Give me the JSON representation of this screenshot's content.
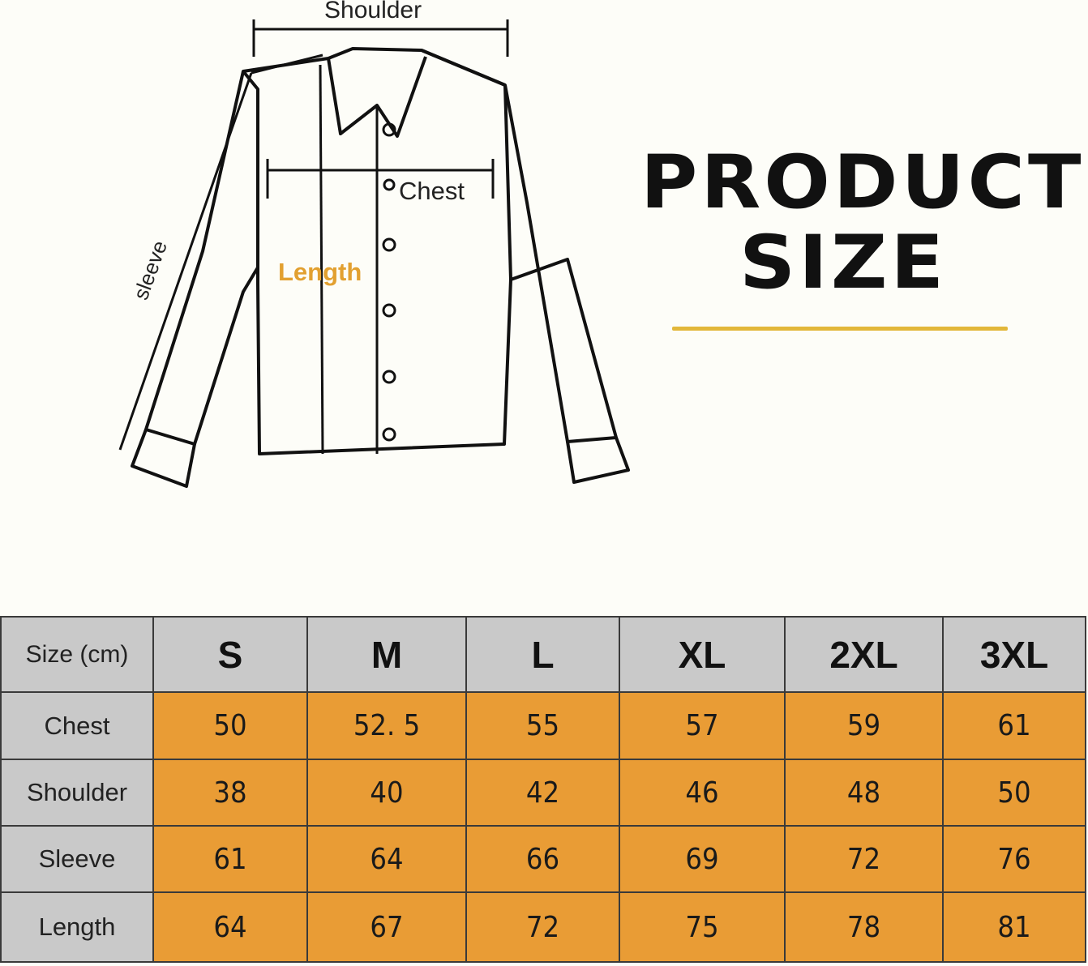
{
  "title": {
    "line1": "PRODUCT",
    "line2": "SIZE"
  },
  "diagram_labels": {
    "shoulder": "Shoulder",
    "chest": "Chest",
    "length": "Length",
    "sleeve": "sleeve"
  },
  "colors": {
    "table_value_bg": "#e99c35",
    "table_header_bg": "#c9c9c9",
    "accent_line": "#e2b73a",
    "length_label": "#e2a030"
  },
  "table": {
    "corner": "Size (cm)",
    "sizes": [
      "S",
      "M",
      "L",
      "XL",
      "2XL",
      "3XL"
    ],
    "rows": [
      {
        "label": "Chest",
        "values": [
          "50",
          "52. 5",
          "55",
          "57",
          "59",
          "61"
        ]
      },
      {
        "label": "Shoulder",
        "values": [
          "38",
          "40",
          "42",
          "46",
          "48",
          "50"
        ]
      },
      {
        "label": "Sleeve",
        "values": [
          "61",
          "64",
          "66",
          "69",
          "72",
          "76"
        ]
      },
      {
        "label": "Length",
        "values": [
          "64",
          "67",
          "72",
          "75",
          "78",
          "81"
        ]
      }
    ]
  }
}
